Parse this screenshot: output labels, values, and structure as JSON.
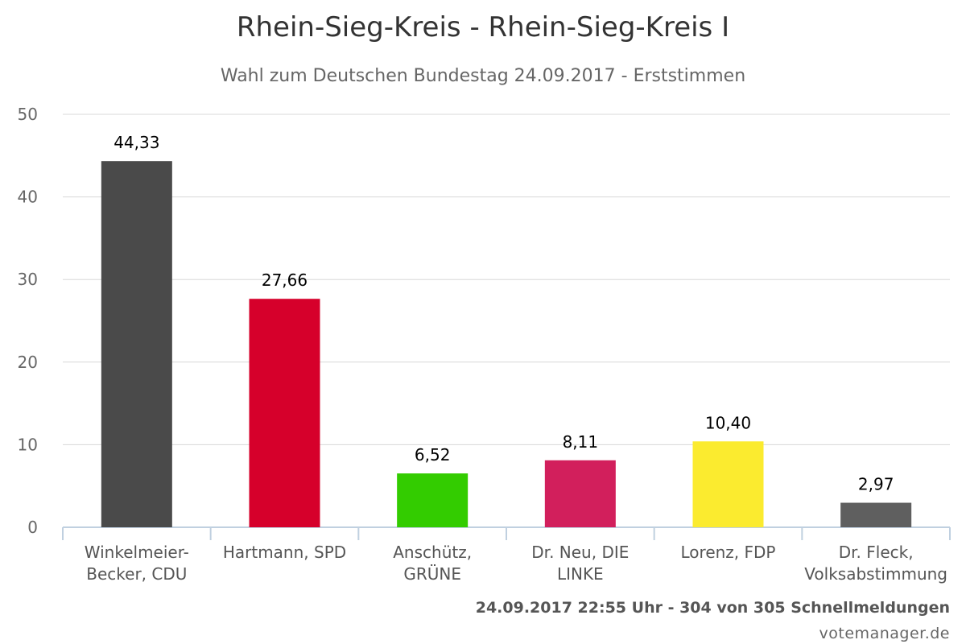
{
  "chart_data": {
    "type": "bar",
    "title": "Rhein-Sieg-Kreis - Rhein-Sieg-Kreis I",
    "subtitle": "Wahl zum Deutschen Bundestag 24.09.2017 - Erststimmen",
    "categories": [
      [
        "Winkelmeier-",
        "Becker, CDU"
      ],
      [
        "Hartmann, SPD"
      ],
      [
        "Anschütz,",
        "GRÜNE"
      ],
      [
        "Dr. Neu, DIE",
        "LINKE"
      ],
      [
        "Lorenz, FDP"
      ],
      [
        "Dr. Fleck,",
        "Volksabstimmung"
      ]
    ],
    "values": [
      44.33,
      27.66,
      6.52,
      8.11,
      10.4,
      2.97
    ],
    "value_labels": [
      "44,33",
      "27,66",
      "6,52",
      "8,11",
      "10,40",
      "2,97"
    ],
    "colors": [
      "#4a4a4a",
      "#d6002b",
      "#33cc00",
      "#d21f5c",
      "#fbeb2f",
      "#5f5f5f"
    ],
    "ylim": [
      0,
      50
    ],
    "yticks": [
      0,
      10,
      20,
      30,
      40,
      50
    ],
    "grid": true,
    "legend": "none"
  },
  "footer": {
    "info": "24.09.2017 22:55 Uhr - 304 von 305 Schnellmeldungen",
    "credit": "votemanager.de"
  }
}
